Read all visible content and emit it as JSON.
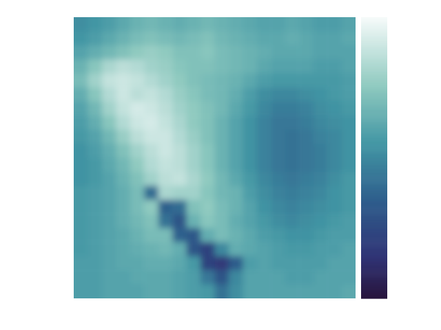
{
  "chart_data": {
    "type": "heatmap",
    "tick_labels": false,
    "zlim": [
      0,
      1
    ],
    "cells": [
      [
        0.52,
        0.55,
        0.58,
        0.62,
        0.66,
        0.68,
        0.66,
        0.64,
        0.66,
        0.68,
        0.66,
        0.64,
        0.62,
        0.6,
        0.6,
        0.62,
        0.6,
        0.58,
        0.58,
        0.6
      ],
      [
        0.55,
        0.58,
        0.62,
        0.66,
        0.7,
        0.72,
        0.7,
        0.68,
        0.7,
        0.72,
        0.68,
        0.66,
        0.64,
        0.62,
        0.62,
        0.64,
        0.62,
        0.6,
        0.6,
        0.62
      ],
      [
        0.6,
        0.64,
        0.68,
        0.72,
        0.76,
        0.78,
        0.76,
        0.72,
        0.72,
        0.74,
        0.7,
        0.68,
        0.66,
        0.64,
        0.62,
        0.62,
        0.62,
        0.6,
        0.6,
        0.6
      ],
      [
        0.66,
        0.74,
        0.82,
        0.86,
        0.84,
        0.8,
        0.78,
        0.74,
        0.72,
        0.72,
        0.7,
        0.68,
        0.66,
        0.62,
        0.6,
        0.6,
        0.6,
        0.58,
        0.58,
        0.6
      ],
      [
        0.7,
        0.8,
        0.88,
        0.9,
        0.88,
        0.84,
        0.8,
        0.76,
        0.72,
        0.7,
        0.68,
        0.66,
        0.62,
        0.58,
        0.56,
        0.56,
        0.56,
        0.56,
        0.56,
        0.58
      ],
      [
        0.64,
        0.74,
        0.84,
        0.9,
        0.86,
        0.88,
        0.84,
        0.78,
        0.74,
        0.7,
        0.68,
        0.64,
        0.58,
        0.52,
        0.5,
        0.5,
        0.52,
        0.54,
        0.56,
        0.58
      ],
      [
        0.6,
        0.68,
        0.8,
        0.88,
        0.92,
        0.9,
        0.86,
        0.8,
        0.76,
        0.72,
        0.68,
        0.62,
        0.56,
        0.5,
        0.46,
        0.46,
        0.48,
        0.52,
        0.54,
        0.56
      ],
      [
        0.58,
        0.64,
        0.74,
        0.84,
        0.9,
        0.92,
        0.88,
        0.82,
        0.76,
        0.72,
        0.66,
        0.6,
        0.54,
        0.48,
        0.44,
        0.44,
        0.46,
        0.5,
        0.52,
        0.54
      ],
      [
        0.56,
        0.6,
        0.68,
        0.78,
        0.86,
        0.9,
        0.9,
        0.84,
        0.78,
        0.72,
        0.66,
        0.6,
        0.54,
        0.48,
        0.44,
        0.42,
        0.44,
        0.48,
        0.5,
        0.54
      ],
      [
        0.54,
        0.58,
        0.64,
        0.72,
        0.8,
        0.86,
        0.9,
        0.86,
        0.8,
        0.74,
        0.66,
        0.6,
        0.54,
        0.48,
        0.44,
        0.42,
        0.44,
        0.46,
        0.5,
        0.54
      ],
      [
        0.54,
        0.56,
        0.62,
        0.68,
        0.76,
        0.84,
        0.88,
        0.86,
        0.8,
        0.74,
        0.66,
        0.6,
        0.54,
        0.48,
        0.44,
        0.42,
        0.44,
        0.46,
        0.5,
        0.54
      ],
      [
        0.54,
        0.56,
        0.6,
        0.66,
        0.72,
        0.8,
        0.86,
        0.88,
        0.82,
        0.76,
        0.68,
        0.62,
        0.56,
        0.5,
        0.46,
        0.44,
        0.46,
        0.48,
        0.52,
        0.56
      ],
      [
        0.56,
        0.58,
        0.6,
        0.64,
        0.7,
        0.4,
        0.82,
        0.8,
        0.8,
        0.74,
        0.68,
        0.66,
        0.58,
        0.52,
        0.48,
        0.46,
        0.48,
        0.5,
        0.54,
        0.56
      ],
      [
        0.56,
        0.58,
        0.6,
        0.64,
        0.7,
        0.76,
        0.36,
        0.4,
        0.72,
        0.76,
        0.7,
        0.66,
        0.6,
        0.54,
        0.5,
        0.48,
        0.5,
        0.52,
        0.54,
        0.56
      ],
      [
        0.56,
        0.58,
        0.6,
        0.64,
        0.68,
        0.72,
        0.42,
        0.3,
        0.66,
        0.74,
        0.7,
        0.64,
        0.6,
        0.56,
        0.52,
        0.5,
        0.52,
        0.54,
        0.56,
        0.58
      ],
      [
        0.56,
        0.58,
        0.6,
        0.62,
        0.66,
        0.7,
        0.7,
        0.36,
        0.32,
        0.64,
        0.7,
        0.66,
        0.62,
        0.58,
        0.56,
        0.54,
        0.54,
        0.56,
        0.58,
        0.58
      ],
      [
        0.56,
        0.58,
        0.6,
        0.62,
        0.64,
        0.66,
        0.68,
        0.64,
        0.3,
        0.22,
        0.5,
        0.64,
        0.62,
        0.6,
        0.58,
        0.56,
        0.56,
        0.58,
        0.58,
        0.6
      ],
      [
        0.58,
        0.58,
        0.6,
        0.62,
        0.62,
        0.64,
        0.64,
        0.62,
        0.56,
        0.22,
        0.18,
        0.34,
        0.58,
        0.6,
        0.58,
        0.58,
        0.58,
        0.58,
        0.6,
        0.6
      ],
      [
        0.58,
        0.58,
        0.6,
        0.6,
        0.62,
        0.62,
        0.62,
        0.6,
        0.58,
        0.44,
        0.3,
        0.5,
        0.6,
        0.6,
        0.6,
        0.58,
        0.58,
        0.6,
        0.6,
        0.6
      ],
      [
        0.58,
        0.58,
        0.6,
        0.6,
        0.6,
        0.62,
        0.62,
        0.6,
        0.58,
        0.56,
        0.42,
        0.52,
        0.6,
        0.6,
        0.6,
        0.6,
        0.6,
        0.6,
        0.6,
        0.62
      ]
    ]
  }
}
